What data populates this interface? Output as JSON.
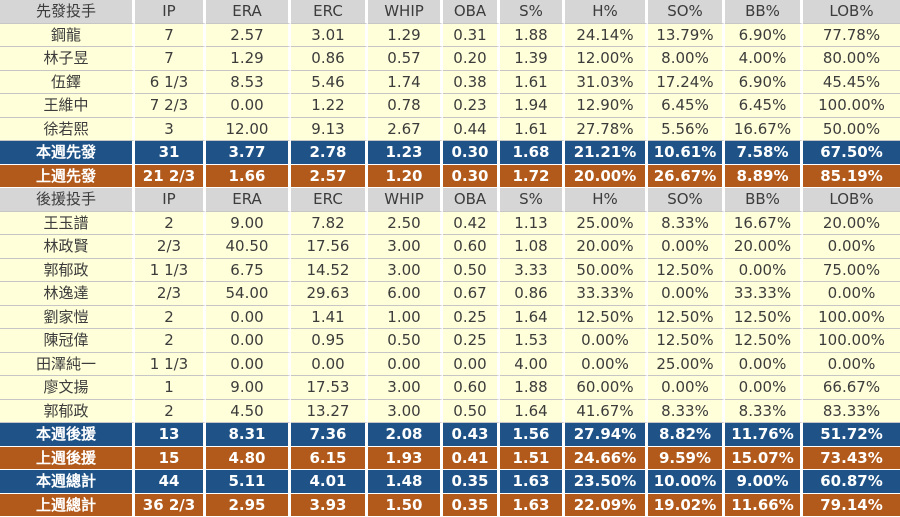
{
  "colors": {
    "header_row_bg": "#d6d6d6",
    "player_row_bg": "#ffffd9",
    "this_week_summary_bg": "#1f5387",
    "last_week_summary_bg": "#b25a1b",
    "summary_text": "#ffffff",
    "body_text": "#3c3c3c"
  },
  "chart_data": {
    "type": "table",
    "columns": [
      "先發投手",
      "IP",
      "ERA",
      "ERC",
      "WHIP",
      "OBA",
      "S%",
      "H%",
      "SO%",
      "BB%",
      "LOB%"
    ],
    "rows": [
      {
        "kind": "header",
        "cells": [
          "先發投手",
          "IP",
          "ERA",
          "ERC",
          "WHIP",
          "OBA",
          "S%",
          "H%",
          "SO%",
          "BB%",
          "LOB%"
        ]
      },
      {
        "kind": "player",
        "cells": [
          "鋼龍",
          "7",
          "2.57",
          "3.01",
          "1.29",
          "0.31",
          "1.88",
          "24.14%",
          "13.79%",
          "6.90%",
          "77.78%"
        ]
      },
      {
        "kind": "player",
        "cells": [
          "林子昱",
          "7",
          "1.29",
          "0.86",
          "0.57",
          "0.20",
          "1.39",
          "12.00%",
          "8.00%",
          "4.00%",
          "80.00%"
        ]
      },
      {
        "kind": "player",
        "cells": [
          "伍鐸",
          "6 1/3",
          "8.53",
          "5.46",
          "1.74",
          "0.38",
          "1.61",
          "31.03%",
          "17.24%",
          "6.90%",
          "45.45%"
        ]
      },
      {
        "kind": "player",
        "cells": [
          "王維中",
          "7 2/3",
          "0.00",
          "1.22",
          "0.78",
          "0.23",
          "1.94",
          "12.90%",
          "6.45%",
          "6.45%",
          "100.00%"
        ]
      },
      {
        "kind": "player",
        "cells": [
          "徐若熙",
          "3",
          "12.00",
          "9.13",
          "2.67",
          "0.44",
          "1.61",
          "27.78%",
          "5.56%",
          "16.67%",
          "50.00%"
        ]
      },
      {
        "kind": "summary-this-week",
        "cells": [
          "本週先發",
          "31",
          "3.77",
          "2.78",
          "1.23",
          "0.30",
          "1.68",
          "21.21%",
          "10.61%",
          "7.58%",
          "67.50%"
        ]
      },
      {
        "kind": "summary-last-week",
        "cells": [
          "上週先發",
          "21 2/3",
          "1.66",
          "2.57",
          "1.20",
          "0.30",
          "1.72",
          "20.00%",
          "26.67%",
          "8.89%",
          "85.19%"
        ]
      },
      {
        "kind": "header",
        "cells": [
          "後援投手",
          "IP",
          "ERA",
          "ERC",
          "WHIP",
          "OBA",
          "S%",
          "H%",
          "SO%",
          "BB%",
          "LOB%"
        ]
      },
      {
        "kind": "player",
        "cells": [
          "王玉譜",
          "2",
          "9.00",
          "7.82",
          "2.50",
          "0.42",
          "1.13",
          "25.00%",
          "8.33%",
          "16.67%",
          "20.00%"
        ]
      },
      {
        "kind": "player",
        "cells": [
          "林政賢",
          "2/3",
          "40.50",
          "17.56",
          "3.00",
          "0.60",
          "1.08",
          "20.00%",
          "0.00%",
          "20.00%",
          "0.00%"
        ]
      },
      {
        "kind": "player",
        "cells": [
          "郭郁政",
          "1 1/3",
          "6.75",
          "14.52",
          "3.00",
          "0.50",
          "3.33",
          "50.00%",
          "12.50%",
          "0.00%",
          "75.00%"
        ]
      },
      {
        "kind": "player",
        "cells": [
          "林逸達",
          "2/3",
          "54.00",
          "29.63",
          "6.00",
          "0.67",
          "0.86",
          "33.33%",
          "0.00%",
          "33.33%",
          "0.00%"
        ]
      },
      {
        "kind": "player",
        "cells": [
          "劉家愷",
          "2",
          "0.00",
          "1.41",
          "1.00",
          "0.25",
          "1.64",
          "12.50%",
          "12.50%",
          "12.50%",
          "100.00%"
        ]
      },
      {
        "kind": "player",
        "cells": [
          "陳冠偉",
          "2",
          "0.00",
          "0.95",
          "0.50",
          "0.25",
          "1.53",
          "0.00%",
          "12.50%",
          "12.50%",
          "100.00%"
        ]
      },
      {
        "kind": "player",
        "cells": [
          "田澤純一",
          "1 1/3",
          "0.00",
          "0.00",
          "0.00",
          "0.00",
          "4.00",
          "0.00%",
          "25.00%",
          "0.00%",
          "0.00%"
        ]
      },
      {
        "kind": "player",
        "cells": [
          "廖文揚",
          "1",
          "9.00",
          "17.53",
          "3.00",
          "0.60",
          "1.88",
          "60.00%",
          "0.00%",
          "0.00%",
          "66.67%"
        ]
      },
      {
        "kind": "player",
        "cells": [
          "郭郁政",
          "2",
          "4.50",
          "13.27",
          "3.00",
          "0.50",
          "1.64",
          "41.67%",
          "8.33%",
          "8.33%",
          "83.33%"
        ]
      },
      {
        "kind": "summary-this-week",
        "cells": [
          "本週後援",
          "13",
          "8.31",
          "7.36",
          "2.08",
          "0.43",
          "1.56",
          "27.94%",
          "8.82%",
          "11.76%",
          "51.72%"
        ]
      },
      {
        "kind": "summary-last-week",
        "cells": [
          "上週後援",
          "15",
          "4.80",
          "6.15",
          "1.93",
          "0.41",
          "1.51",
          "24.66%",
          "9.59%",
          "15.07%",
          "73.43%"
        ]
      },
      {
        "kind": "summary-this-week",
        "cells": [
          "本週總計",
          "44",
          "5.11",
          "4.01",
          "1.48",
          "0.35",
          "1.63",
          "23.50%",
          "10.00%",
          "9.00%",
          "60.87%"
        ]
      },
      {
        "kind": "summary-last-week",
        "cells": [
          "上週總計",
          "36 2/3",
          "2.95",
          "3.93",
          "1.50",
          "0.35",
          "1.63",
          "22.09%",
          "19.02%",
          "11.66%",
          "79.14%"
        ]
      }
    ]
  }
}
